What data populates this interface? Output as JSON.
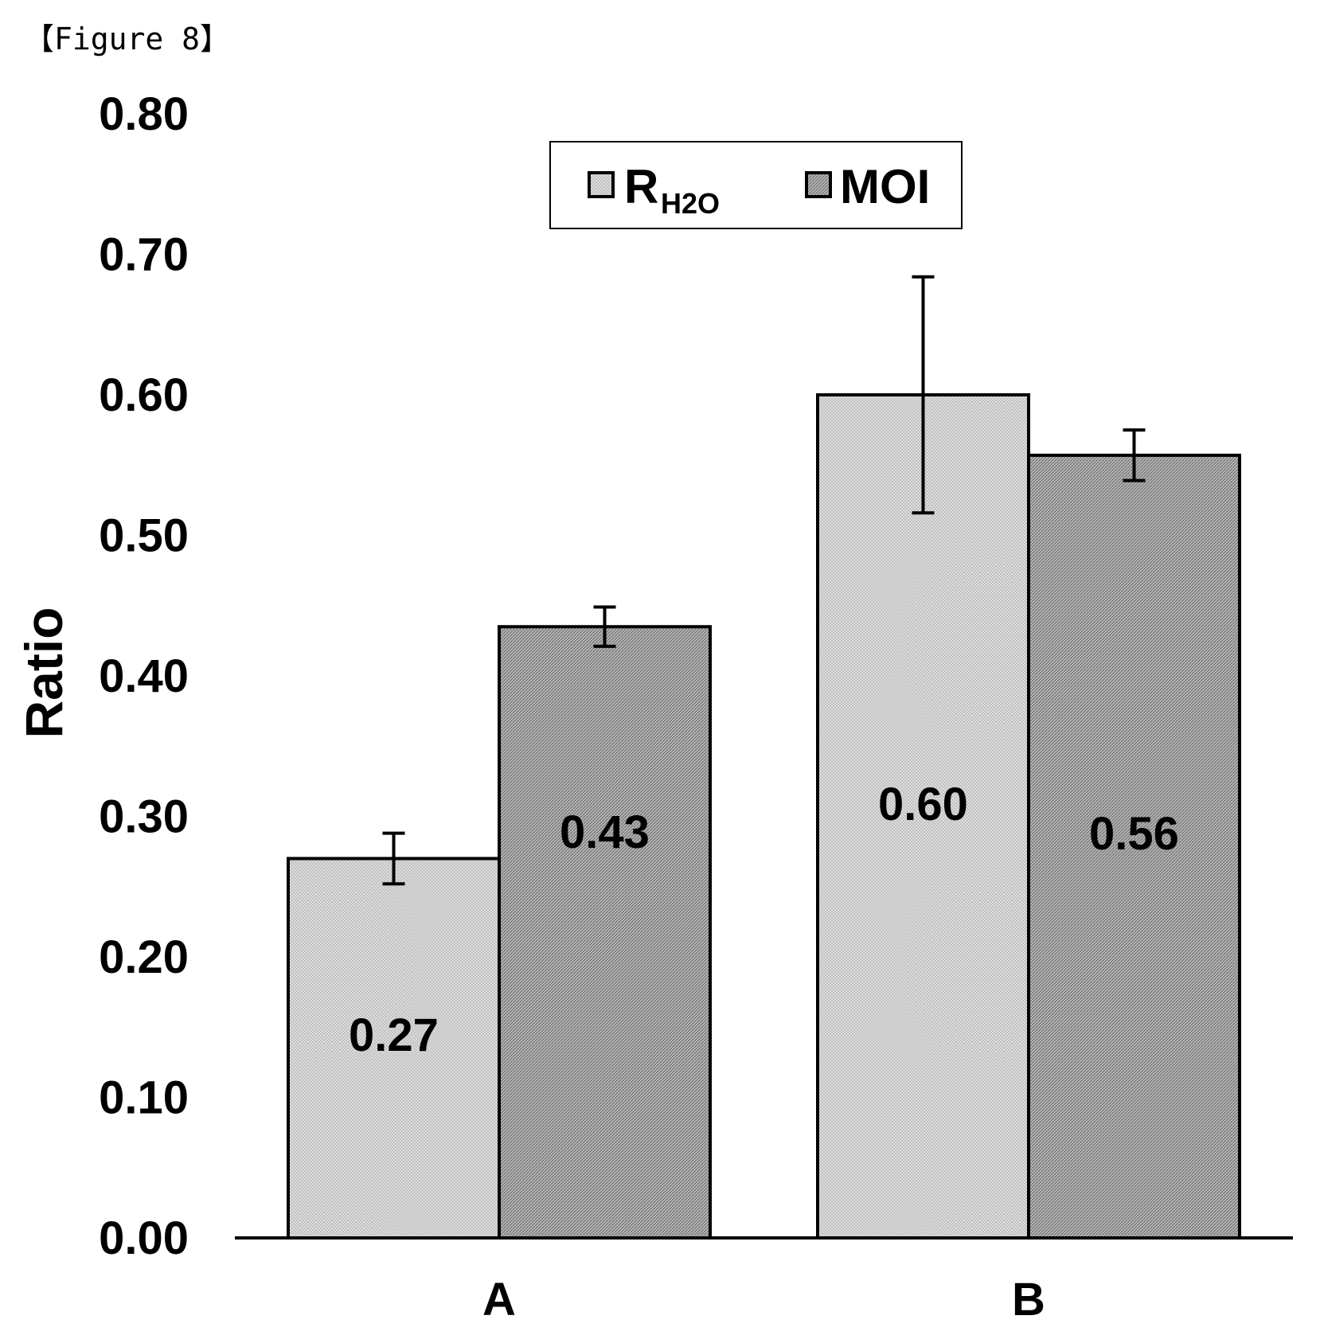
{
  "figure_label": "【Figure 8】",
  "chart_data": {
    "type": "bar",
    "title": "",
    "xlabel": "",
    "ylabel": "Ratio",
    "categories": [
      "A",
      "B"
    ],
    "ylim": [
      0.0,
      0.8
    ],
    "yticks": [
      "0.00",
      "0.10",
      "0.20",
      "0.30",
      "0.40",
      "0.50",
      "0.60",
      "0.70",
      "0.80"
    ],
    "legend_position": "top-center",
    "grid": false,
    "series": [
      {
        "name": "R",
        "name_subscript": "H2O",
        "values": [
          0.27,
          0.6
        ],
        "value_labels": [
          "0.27",
          "0.60"
        ],
        "error": [
          0.018,
          0.084
        ],
        "color": "#d4d4d4"
      },
      {
        "name": "MOI",
        "values": [
          0.435,
          0.557
        ],
        "value_labels": [
          "0.43",
          "0.56"
        ],
        "error": [
          0.014,
          0.018
        ],
        "color": "#a9a9a9"
      }
    ]
  }
}
